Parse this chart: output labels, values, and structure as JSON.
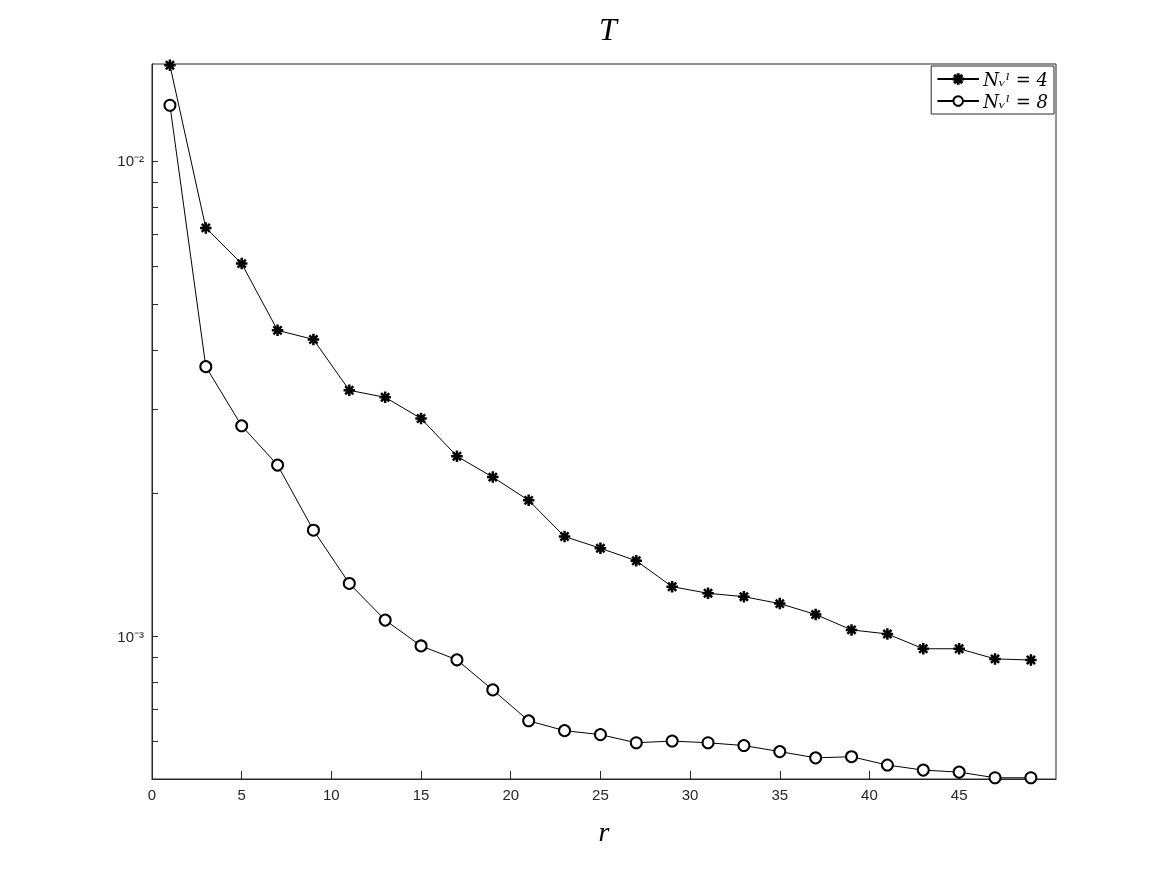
{
  "chart_data": {
    "type": "line",
    "title": "T",
    "xlabel": "r",
    "x": [
      1,
      3,
      5,
      7,
      9,
      11,
      13,
      15,
      17,
      19,
      21,
      23,
      25,
      27,
      29,
      31,
      33,
      35,
      37,
      39,
      41,
      43,
      45,
      47,
      49
    ],
    "series": [
      {
        "name": "Nᵥˡ = 4",
        "color": "#000000",
        "marker": "star",
        "values": [
          0.0159,
          0.00723,
          0.00608,
          0.0044,
          0.00421,
          0.00329,
          0.00318,
          0.00287,
          0.00239,
          0.00216,
          0.00193,
          0.00162,
          0.00153,
          0.00144,
          0.00127,
          0.00123,
          0.00121,
          0.00117,
          0.00111,
          0.00103,
          0.00101,
          0.00094,
          0.00094,
          0.000895,
          0.00089
        ]
      },
      {
        "name": "Nᵥˡ = 8",
        "color": "#000000",
        "marker": "circle",
        "values": [
          0.0131,
          0.00369,
          0.00277,
          0.00229,
          0.00167,
          0.00129,
          0.00108,
          0.000953,
          0.000891,
          0.00077,
          0.000663,
          0.000632,
          0.00062,
          0.000596,
          0.000601,
          0.000596,
          0.000588,
          0.000571,
          0.000554,
          0.000557,
          0.000535,
          0.000522,
          0.000517,
          0.000503,
          0.000503
        ]
      }
    ],
    "log": "y",
    "xlim": [
      0,
      50.4
    ],
    "xticks": [
      0,
      5,
      10,
      15,
      20,
      25,
      30,
      35,
      40,
      45
    ],
    "ylim": [
      0.0005,
      0.016
    ],
    "yticks": [
      {
        "value": 0.0006,
        "label": null
      },
      {
        "value": 0.0007,
        "label": null
      },
      {
        "value": 0.0008,
        "label": null
      },
      {
        "value": 0.0009,
        "label": null
      },
      {
        "value": 0.001,
        "label": "10⁻³"
      },
      {
        "value": 0.002,
        "label": null
      },
      {
        "value": 0.003,
        "label": null
      },
      {
        "value": 0.004,
        "label": null
      },
      {
        "value": 0.005,
        "label": null
      },
      {
        "value": 0.006,
        "label": null
      },
      {
        "value": 0.007,
        "label": null
      },
      {
        "value": 0.008,
        "label": null
      },
      {
        "value": 0.009,
        "label": null
      },
      {
        "value": 0.01,
        "label": "10⁻²"
      }
    ],
    "grid": false,
    "legend": "top right",
    "line_style": "solid"
  }
}
